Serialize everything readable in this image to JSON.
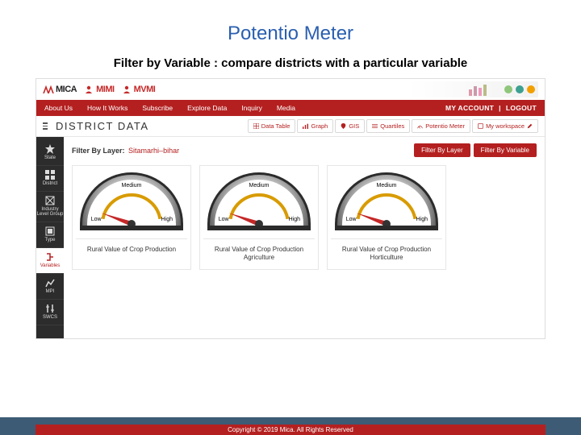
{
  "slide": {
    "title": "Potentio Meter",
    "title_color": "#2a5fb0",
    "subtitle": "Filter by Variable : compare districts with a particular variable"
  },
  "logos": {
    "l1": "MICA",
    "l2": "MIMI",
    "l3": "MVMI"
  },
  "banner_colors": [
    "#8fc67a",
    "#3da090",
    "#f2a000"
  ],
  "nav": {
    "items": [
      "About Us",
      "How It Works",
      "Subscribe",
      "Explore Data",
      "Inquiry",
      "Media"
    ],
    "account": "MY ACCOUNT",
    "sep": "|",
    "logout": "LOGOUT",
    "bg": "#b42020"
  },
  "subbar": {
    "page": "DISTRICT DATA",
    "tabs": [
      {
        "icon": "table",
        "label": "Data Table"
      },
      {
        "icon": "chart",
        "label": "Graph"
      },
      {
        "icon": "pin",
        "label": "GIS"
      },
      {
        "icon": "quart",
        "label": "Quartiles"
      },
      {
        "icon": "gauge",
        "label": "Potentio Meter"
      },
      {
        "icon": "ws",
        "label": "My workspace"
      }
    ]
  },
  "sidebar": {
    "items": [
      {
        "label": "State",
        "icon": "star"
      },
      {
        "label": "District",
        "icon": "grid"
      },
      {
        "label": "Industry Level Group",
        "icon": "boxx"
      },
      {
        "label": "Type",
        "icon": "type"
      },
      {
        "label": "Variables",
        "icon": "vars",
        "active": true
      },
      {
        "label": "MPI",
        "icon": "mpi"
      },
      {
        "label": "SWCS",
        "icon": "swcs"
      }
    ]
  },
  "filter": {
    "label": "Filter By Layer:",
    "value": "Sitamarhi–bihar",
    "btn1": "Filter By Layer",
    "btn2": "Filter By Variable"
  },
  "gauges": {
    "ticks": [
      "Low",
      "Medium",
      "High"
    ],
    "bezel_outer": "#2b2b2b",
    "bezel_inner": "#bdbdbd",
    "face": "#ffffff",
    "arc_color": "#d89b00",
    "needle_color": "#c62828",
    "tick_text_color": "#000000",
    "items": [
      {
        "label": "Rural Value of Crop Production",
        "angle": -70
      },
      {
        "label": "Rural Value of Crop Production Agriculture",
        "angle": -70
      },
      {
        "label": "Rural Value of Crop Production Horticulture",
        "angle": -70
      }
    ]
  },
  "footer": {
    "band_color": "#3d5b74",
    "text": "Copyright © 2019 Mica. All Rights Reserved",
    "bg": "#b42020"
  }
}
